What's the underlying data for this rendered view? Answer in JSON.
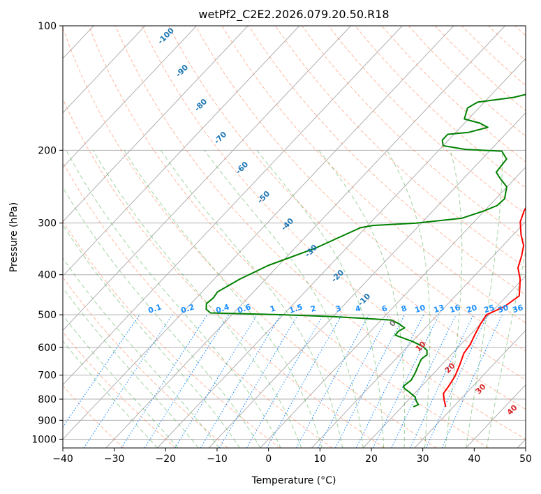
{
  "chart_data": {
    "type": "line",
    "title": "wetPf2_C2E2.2026.079.20.50.R18",
    "xlabel": "Temperature (°C)",
    "ylabel": "Pressure (hPa)",
    "xlim": [
      -40,
      50
    ],
    "ylim": [
      1050,
      100
    ],
    "x_ticks": [
      "−40",
      "−30",
      "−20",
      "−10",
      "0",
      "10",
      "20",
      "30",
      "40",
      "50"
    ],
    "y_ticks": [
      "100",
      "200",
      "300",
      "400",
      "500",
      "600",
      "700",
      "800",
      "900",
      "1000"
    ],
    "isotherm_labels": [
      "-100",
      "-90",
      "-80",
      "-70",
      "-60",
      "-50",
      "-40",
      "-30",
      "-20",
      "-10",
      "0",
      "10",
      "20",
      "30",
      "40"
    ],
    "mixing_ratio_labels": [
      "0.1",
      "0.2",
      "0.4",
      "0.6",
      "1",
      "1.5",
      "2",
      "3",
      "4",
      "6",
      "8",
      "10",
      "13",
      "16",
      "20",
      "25",
      "30",
      "36"
    ],
    "colors": {
      "temperature": "#ff0000",
      "dewpoint": "#008000",
      "isotherm_neg": "#1f77b4",
      "isotherm_pos": "#d62728",
      "mixing": "#1e90ff",
      "dry_adiabat": "#ff7f50",
      "moist_adiabat": "#2ca02c",
      "grid": "#b0b0b0"
    },
    "series": [
      {
        "name": "Temperature",
        "points": [
          [
            -1.3,
            100
          ],
          [
            -1.8,
            115
          ],
          [
            -1.6,
            130
          ],
          [
            -0.7,
            145
          ],
          [
            0.3,
            160
          ],
          [
            1.4,
            178
          ],
          [
            2,
            190
          ],
          [
            3,
            205
          ],
          [
            4.3,
            225
          ],
          [
            6.1,
            250
          ],
          [
            7,
            265
          ],
          [
            7.7,
            280
          ],
          [
            9,
            298
          ],
          [
            11.5,
            320
          ],
          [
            14,
            340
          ],
          [
            15.5,
            360
          ],
          [
            17,
            385
          ],
          [
            19.5,
            410
          ],
          [
            21,
            430
          ],
          [
            22.4,
            450
          ],
          [
            21.5,
            478
          ],
          [
            19.5,
            500
          ],
          [
            20,
            525
          ],
          [
            20.8,
            555
          ],
          [
            21.8,
            590
          ],
          [
            22.2,
            620
          ],
          [
            23.5,
            660
          ],
          [
            24.7,
            705
          ],
          [
            25.3,
            745
          ],
          [
            25.6,
            775
          ],
          [
            27,
            805
          ],
          [
            28.5,
            835
          ]
        ]
      },
      {
        "name": "Dewpoint",
        "points": [
          [
            -0.4,
            100
          ],
          [
            -0.7,
            107
          ],
          [
            -3.7,
            117
          ],
          [
            -6.4,
            128
          ],
          [
            -7.2,
            135
          ],
          [
            -10.5,
            143
          ],
          [
            -15.2,
            149
          ],
          [
            -21.3,
            153
          ],
          [
            -22.2,
            158
          ],
          [
            -20.8,
            168
          ],
          [
            -17,
            172
          ],
          [
            -14.7,
            176
          ],
          [
            -17.5,
            181
          ],
          [
            -21.2,
            183
          ],
          [
            -21.2,
            189
          ],
          [
            -20,
            195
          ],
          [
            -15,
            199
          ],
          [
            -7.6,
            201
          ],
          [
            -5.2,
            210
          ],
          [
            -4.8,
            226
          ],
          [
            -2.9,
            234
          ],
          [
            -0.1,
            245
          ],
          [
            1.7,
            262
          ],
          [
            1.5,
            272
          ],
          [
            0,
            280
          ],
          [
            -3,
            292
          ],
          [
            -11,
            300
          ],
          [
            -19,
            304
          ],
          [
            -21,
            308
          ],
          [
            -26,
            345
          ],
          [
            -32,
            380
          ],
          [
            -35,
            410
          ],
          [
            -36,
            425
          ],
          [
            -37,
            440
          ],
          [
            -36.7,
            455
          ],
          [
            -37,
            470
          ],
          [
            -36,
            485
          ],
          [
            -34.5,
            495
          ],
          [
            -20,
            500
          ],
          [
            -10,
            505
          ],
          [
            2,
            515
          ],
          [
            4,
            525
          ],
          [
            6,
            538
          ],
          [
            5.4,
            548
          ],
          [
            5.5,
            560
          ],
          [
            10,
            580
          ],
          [
            13,
            597
          ],
          [
            14.5,
            610
          ],
          [
            15.3,
            625
          ],
          [
            15,
            640
          ],
          [
            15.5,
            660
          ],
          [
            16.3,
            690
          ],
          [
            16.9,
            720
          ],
          [
            16.5,
            745
          ],
          [
            17.2,
            755
          ],
          [
            18.8,
            770
          ],
          [
            20.7,
            790
          ],
          [
            21.8,
            810
          ],
          [
            22.8,
            825
          ],
          [
            22.2,
            835
          ]
        ]
      }
    ]
  }
}
